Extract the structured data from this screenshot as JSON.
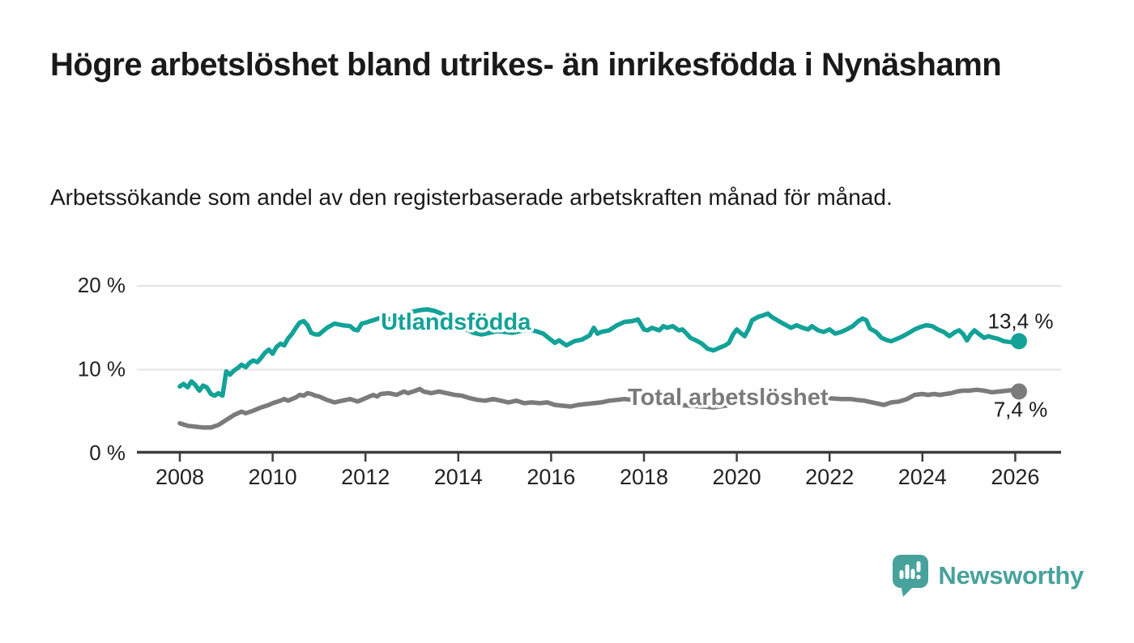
{
  "header": {
    "title": "Högre arbetslöshet bland utrikes- än inrikesfödda i Nynäshamn",
    "subtitle": "Arbetssökande som andel av den registerbaserade arbetskraften månad för månad."
  },
  "branding": {
    "name": "Newsworthy",
    "color": "#47a29c",
    "icon": "bar-chart-speech-bubble-icon"
  },
  "colors": {
    "axis": "#3d3d3d",
    "grid": "#e3e3e3",
    "tick_text": "#222222",
    "value_text": "#1a1a1a"
  },
  "chart_data": {
    "type": "line",
    "title": "",
    "xlabel": "",
    "ylabel": "",
    "grid": true,
    "x_axis": {
      "ticks": [
        2008,
        2010,
        2012,
        2014,
        2016,
        2018,
        2020,
        2022,
        2024,
        2026
      ],
      "tick_labels": [
        "2008",
        "2010",
        "2012",
        "2014",
        "2016",
        "2018",
        "2020",
        "2022",
        "2024",
        "2026"
      ]
    },
    "y_axis": {
      "range": [
        0,
        20
      ],
      "ticks": [
        {
          "value": 0,
          "label": "0 %"
        },
        {
          "value": 10,
          "label": "10 %"
        },
        {
          "value": 20,
          "label": "20 %"
        }
      ]
    },
    "series": [
      {
        "name": "Utlandsfödda",
        "color": "#12a297",
        "end_value": 13.4,
        "end_label": "13,4 %",
        "end_label_side": "above",
        "label_anchor": {
          "year": 2012.33,
          "value": 14.78
        },
        "points": [
          [
            2008.0,
            8.0
          ],
          [
            2008.08,
            8.3
          ],
          [
            2008.17,
            7.9
          ],
          [
            2008.25,
            8.6
          ],
          [
            2008.33,
            8.2
          ],
          [
            2008.42,
            7.5
          ],
          [
            2008.5,
            8.1
          ],
          [
            2008.58,
            7.9
          ],
          [
            2008.67,
            7.1
          ],
          [
            2008.75,
            6.9
          ],
          [
            2008.83,
            7.2
          ],
          [
            2008.92,
            6.9
          ],
          [
            2009.0,
            9.8
          ],
          [
            2009.08,
            9.4
          ],
          [
            2009.17,
            9.9
          ],
          [
            2009.25,
            10.2
          ],
          [
            2009.33,
            10.6
          ],
          [
            2009.42,
            10.3
          ],
          [
            2009.5,
            10.8
          ],
          [
            2009.58,
            11.1
          ],
          [
            2009.67,
            10.9
          ],
          [
            2009.75,
            11.4
          ],
          [
            2009.83,
            12.0
          ],
          [
            2009.92,
            12.4
          ],
          [
            2010.0,
            11.9
          ],
          [
            2010.08,
            12.7
          ],
          [
            2010.17,
            13.1
          ],
          [
            2010.25,
            12.9
          ],
          [
            2010.33,
            13.7
          ],
          [
            2010.42,
            14.3
          ],
          [
            2010.5,
            15.0
          ],
          [
            2010.58,
            15.6
          ],
          [
            2010.67,
            15.8
          ],
          [
            2010.75,
            15.3
          ],
          [
            2010.83,
            14.4
          ],
          [
            2010.92,
            14.2
          ],
          [
            2011.0,
            14.2
          ],
          [
            2011.17,
            15.0
          ],
          [
            2011.33,
            15.5
          ],
          [
            2011.5,
            15.3
          ],
          [
            2011.67,
            15.2
          ],
          [
            2011.75,
            14.8
          ],
          [
            2011.83,
            14.7
          ],
          [
            2011.92,
            15.5
          ],
          [
            2012.0,
            15.6
          ],
          [
            2012.17,
            15.9
          ],
          [
            2012.33,
            16.2
          ],
          [
            2012.5,
            16.0
          ],
          [
            2012.67,
            16.4
          ],
          [
            2012.83,
            16.6
          ],
          [
            2013.0,
            16.9
          ],
          [
            2013.17,
            17.1
          ],
          [
            2013.33,
            17.2
          ],
          [
            2013.5,
            17.0
          ],
          [
            2013.67,
            16.6
          ],
          [
            2013.83,
            16.0
          ],
          [
            2014.0,
            15.4
          ],
          [
            2014.17,
            14.8
          ],
          [
            2014.33,
            14.4
          ],
          [
            2014.5,
            14.2
          ],
          [
            2014.67,
            14.4
          ],
          [
            2014.83,
            14.6
          ],
          [
            2015.0,
            14.5
          ],
          [
            2015.17,
            14.4
          ],
          [
            2015.33,
            14.6
          ],
          [
            2015.5,
            14.8
          ],
          [
            2015.67,
            14.6
          ],
          [
            2015.83,
            14.3
          ],
          [
            2015.92,
            13.9
          ],
          [
            2016.08,
            13.2
          ],
          [
            2016.17,
            13.5
          ],
          [
            2016.33,
            12.9
          ],
          [
            2016.5,
            13.4
          ],
          [
            2016.67,
            13.6
          ],
          [
            2016.83,
            14.1
          ],
          [
            2016.92,
            15.0
          ],
          [
            2017.0,
            14.3
          ],
          [
            2017.08,
            14.5
          ],
          [
            2017.25,
            14.7
          ],
          [
            2017.42,
            15.3
          ],
          [
            2017.58,
            15.7
          ],
          [
            2017.75,
            15.8
          ],
          [
            2017.87,
            16.0
          ],
          [
            2018.0,
            14.8
          ],
          [
            2018.08,
            14.7
          ],
          [
            2018.17,
            15.0
          ],
          [
            2018.33,
            14.7
          ],
          [
            2018.42,
            15.2
          ],
          [
            2018.5,
            15.0
          ],
          [
            2018.62,
            15.2
          ],
          [
            2018.75,
            14.7
          ],
          [
            2018.83,
            14.8
          ],
          [
            2018.92,
            14.3
          ],
          [
            2019.0,
            13.8
          ],
          [
            2019.12,
            13.5
          ],
          [
            2019.25,
            13.1
          ],
          [
            2019.37,
            12.5
          ],
          [
            2019.5,
            12.3
          ],
          [
            2019.62,
            12.6
          ],
          [
            2019.75,
            12.9
          ],
          [
            2019.83,
            13.2
          ],
          [
            2019.92,
            14.2
          ],
          [
            2020.0,
            14.8
          ],
          [
            2020.08,
            14.4
          ],
          [
            2020.17,
            14.0
          ],
          [
            2020.25,
            14.8
          ],
          [
            2020.33,
            15.9
          ],
          [
            2020.46,
            16.3
          ],
          [
            2020.58,
            16.5
          ],
          [
            2020.67,
            16.7
          ],
          [
            2020.75,
            16.3
          ],
          [
            2020.87,
            15.9
          ],
          [
            2021.0,
            15.5
          ],
          [
            2021.17,
            15.0
          ],
          [
            2021.29,
            15.3
          ],
          [
            2021.42,
            15.0
          ],
          [
            2021.54,
            14.8
          ],
          [
            2021.62,
            15.2
          ],
          [
            2021.75,
            14.7
          ],
          [
            2021.87,
            14.5
          ],
          [
            2022.0,
            14.8
          ],
          [
            2022.12,
            14.3
          ],
          [
            2022.25,
            14.5
          ],
          [
            2022.37,
            14.8
          ],
          [
            2022.5,
            15.2
          ],
          [
            2022.62,
            15.8
          ],
          [
            2022.71,
            16.1
          ],
          [
            2022.79,
            15.9
          ],
          [
            2022.87,
            14.9
          ],
          [
            2023.0,
            14.5
          ],
          [
            2023.12,
            13.8
          ],
          [
            2023.25,
            13.5
          ],
          [
            2023.33,
            13.4
          ],
          [
            2023.46,
            13.7
          ],
          [
            2023.58,
            14.0
          ],
          [
            2023.71,
            14.4
          ],
          [
            2023.83,
            14.8
          ],
          [
            2023.96,
            15.1
          ],
          [
            2024.08,
            15.3
          ],
          [
            2024.21,
            15.2
          ],
          [
            2024.33,
            14.8
          ],
          [
            2024.46,
            14.5
          ],
          [
            2024.58,
            14.0
          ],
          [
            2024.71,
            14.5
          ],
          [
            2024.79,
            14.7
          ],
          [
            2024.87,
            14.3
          ],
          [
            2024.96,
            13.5
          ],
          [
            2025.04,
            14.2
          ],
          [
            2025.12,
            14.7
          ],
          [
            2025.21,
            14.3
          ],
          [
            2025.33,
            13.8
          ],
          [
            2025.42,
            14.0
          ],
          [
            2025.54,
            13.8
          ],
          [
            2025.62,
            13.7
          ],
          [
            2025.75,
            13.4
          ],
          [
            2025.87,
            13.3
          ],
          [
            2026.0,
            13.2
          ],
          [
            2026.08,
            13.4
          ]
        ]
      },
      {
        "name": "Total arbetslöshet",
        "color": "#7b7b7b",
        "end_value": 7.4,
        "end_label": "7,4 %",
        "end_label_side": "below",
        "label_anchor": {
          "year": 2017.65,
          "value": 5.8
        },
        "points": [
          [
            2008.0,
            3.6
          ],
          [
            2008.17,
            3.3
          ],
          [
            2008.33,
            3.2
          ],
          [
            2008.5,
            3.1
          ],
          [
            2008.67,
            3.1
          ],
          [
            2008.83,
            3.4
          ],
          [
            2009.0,
            4.0
          ],
          [
            2009.17,
            4.6
          ],
          [
            2009.33,
            5.0
          ],
          [
            2009.42,
            4.8
          ],
          [
            2009.58,
            5.1
          ],
          [
            2009.75,
            5.5
          ],
          [
            2009.92,
            5.8
          ],
          [
            2010.0,
            6.0
          ],
          [
            2010.17,
            6.3
          ],
          [
            2010.25,
            6.5
          ],
          [
            2010.33,
            6.3
          ],
          [
            2010.5,
            6.7
          ],
          [
            2010.58,
            7.0
          ],
          [
            2010.67,
            6.9
          ],
          [
            2010.75,
            7.2
          ],
          [
            2010.83,
            7.1
          ],
          [
            2010.92,
            6.9
          ],
          [
            2011.0,
            6.8
          ],
          [
            2011.17,
            6.4
          ],
          [
            2011.33,
            6.1
          ],
          [
            2011.5,
            6.3
          ],
          [
            2011.67,
            6.5
          ],
          [
            2011.83,
            6.2
          ],
          [
            2012.0,
            6.6
          ],
          [
            2012.17,
            7.0
          ],
          [
            2012.25,
            6.8
          ],
          [
            2012.33,
            7.1
          ],
          [
            2012.5,
            7.2
          ],
          [
            2012.67,
            7.0
          ],
          [
            2012.83,
            7.4
          ],
          [
            2012.92,
            7.2
          ],
          [
            2013.08,
            7.5
          ],
          [
            2013.17,
            7.7
          ],
          [
            2013.25,
            7.4
          ],
          [
            2013.42,
            7.2
          ],
          [
            2013.58,
            7.4
          ],
          [
            2013.75,
            7.2
          ],
          [
            2013.92,
            7.0
          ],
          [
            2014.08,
            6.9
          ],
          [
            2014.25,
            6.6
          ],
          [
            2014.42,
            6.4
          ],
          [
            2014.58,
            6.3
          ],
          [
            2014.75,
            6.5
          ],
          [
            2014.92,
            6.3
          ],
          [
            2015.08,
            6.1
          ],
          [
            2015.25,
            6.3
          ],
          [
            2015.42,
            6.0
          ],
          [
            2015.58,
            6.1
          ],
          [
            2015.75,
            6.0
          ],
          [
            2015.92,
            6.1
          ],
          [
            2016.08,
            5.8
          ],
          [
            2016.25,
            5.7
          ],
          [
            2016.42,
            5.6
          ],
          [
            2016.58,
            5.8
          ],
          [
            2016.75,
            5.9
          ],
          [
            2016.92,
            6.0
          ],
          [
            2017.08,
            6.1
          ],
          [
            2017.25,
            6.3
          ],
          [
            2017.42,
            6.4
          ],
          [
            2017.58,
            6.5
          ],
          [
            2017.75,
            6.4
          ],
          [
            2018.0,
            6.2
          ],
          [
            2018.25,
            6.0
          ],
          [
            2018.5,
            5.9
          ],
          [
            2018.75,
            5.8
          ],
          [
            2019.0,
            5.7
          ],
          [
            2019.25,
            5.6
          ],
          [
            2019.5,
            5.5
          ],
          [
            2019.75,
            5.7
          ],
          [
            2020.0,
            6.0
          ],
          [
            2020.17,
            6.6
          ],
          [
            2020.33,
            7.1
          ],
          [
            2020.5,
            7.3
          ],
          [
            2020.75,
            7.2
          ],
          [
            2021.0,
            7.0
          ],
          [
            2021.25,
            6.9
          ],
          [
            2021.5,
            6.8
          ],
          [
            2021.75,
            6.7
          ],
          [
            2022.0,
            6.6
          ],
          [
            2022.25,
            6.5
          ],
          [
            2022.45,
            6.5
          ],
          [
            2022.58,
            6.4
          ],
          [
            2022.75,
            6.3
          ],
          [
            2022.92,
            6.1
          ],
          [
            2023.08,
            5.9
          ],
          [
            2023.17,
            5.8
          ],
          [
            2023.33,
            6.1
          ],
          [
            2023.5,
            6.2
          ],
          [
            2023.67,
            6.5
          ],
          [
            2023.83,
            7.0
          ],
          [
            2024.0,
            7.1
          ],
          [
            2024.12,
            7.0
          ],
          [
            2024.25,
            7.1
          ],
          [
            2024.37,
            7.0
          ],
          [
            2024.5,
            7.1
          ],
          [
            2024.62,
            7.2
          ],
          [
            2024.75,
            7.4
          ],
          [
            2024.87,
            7.5
          ],
          [
            2025.0,
            7.5
          ],
          [
            2025.17,
            7.6
          ],
          [
            2025.33,
            7.5
          ],
          [
            2025.5,
            7.3
          ],
          [
            2025.67,
            7.4
          ],
          [
            2025.83,
            7.5
          ],
          [
            2026.0,
            7.6
          ],
          [
            2026.08,
            7.4
          ]
        ]
      }
    ]
  }
}
